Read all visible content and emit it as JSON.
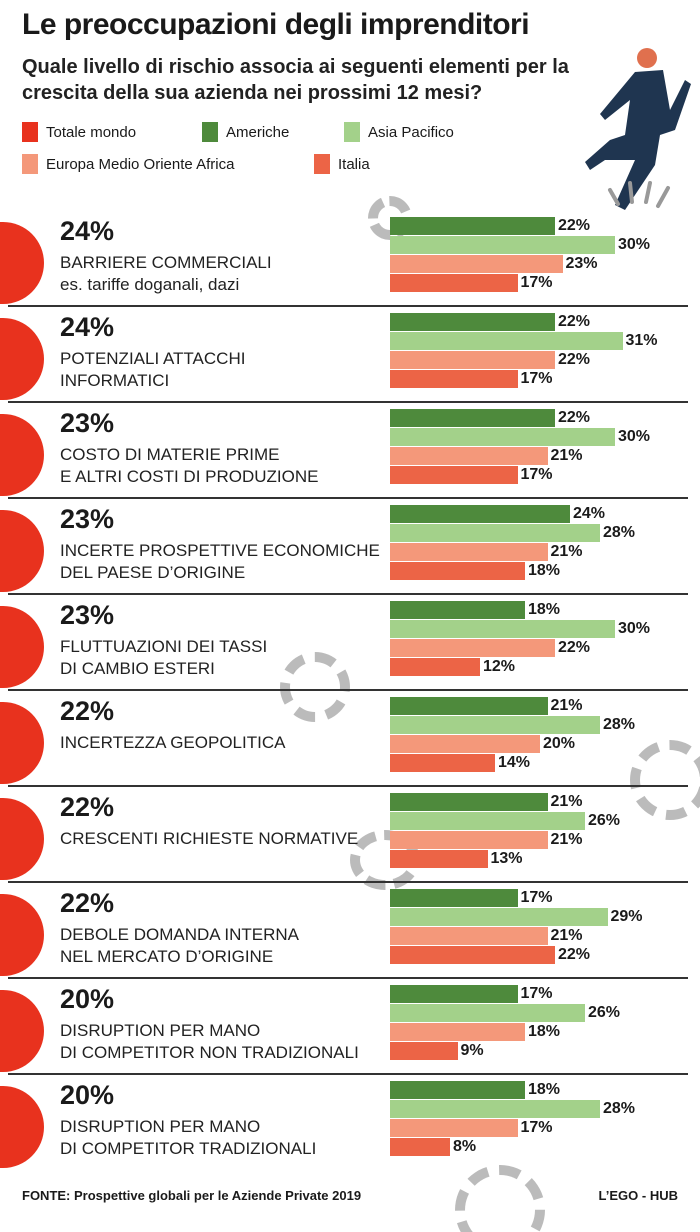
{
  "chart_data": {
    "type": "bar",
    "title": "Le preoccupazioni degli imprenditori",
    "subtitle": "Quale livello di rischio associa ai seguenti elementi per la crescita della sua azienda nei prossimi 12 mesi?",
    "legend": [
      {
        "name": "Totale mondo",
        "color": "#e8321e"
      },
      {
        "name": "Americhe",
        "color": "#4e8a3c"
      },
      {
        "name": "Asia Pacifico",
        "color": "#a3d18a"
      },
      {
        "name": "Europa Medio Oriente Africa",
        "color": "#f4987a"
      },
      {
        "name": "Italia",
        "color": "#ec6446"
      }
    ],
    "categories": [
      {
        "total": "24%",
        "label": [
          "BARRIERE COMMERCIALI",
          "es. tariffe doganali, dazi"
        ],
        "values": [
          22,
          30,
          23,
          17
        ]
      },
      {
        "total": "24%",
        "label": [
          "POTENZIALI ATTACCHI",
          "INFORMATICI"
        ],
        "values": [
          22,
          31,
          22,
          17
        ]
      },
      {
        "total": "23%",
        "label": [
          "COSTO DI MATERIE PRIME",
          "E ALTRI COSTI DI PRODUZIONE"
        ],
        "values": [
          22,
          30,
          21,
          17
        ]
      },
      {
        "total": "23%",
        "label": [
          "INCERTE PROSPETTIVE ECONOMICHE",
          "DEL PAESE D’ORIGINE"
        ],
        "values": [
          24,
          28,
          21,
          18
        ]
      },
      {
        "total": "23%",
        "label": [
          "FLUTTUAZIONI DEI TASSI",
          "DI CAMBIO ESTERI"
        ],
        "values": [
          18,
          30,
          22,
          12
        ]
      },
      {
        "total": "22%",
        "label": [
          "INCERTEZZA GEOPOLITICA"
        ],
        "values": [
          21,
          28,
          20,
          14
        ]
      },
      {
        "total": "22%",
        "label": [
          "CRESCENTI RICHIESTE NORMATIVE"
        ],
        "values": [
          21,
          26,
          21,
          13
        ]
      },
      {
        "total": "22%",
        "label": [
          "DEBOLE DOMANDA INTERNA",
          "NEL MERCATO D’ORIGINE"
        ],
        "values": [
          17,
          29,
          21,
          22
        ]
      },
      {
        "total": "20%",
        "label": [
          "DISRUPTION PER MANO",
          "DI COMPETITOR NON TRADIZIONALI"
        ],
        "values": [
          17,
          26,
          18,
          9
        ]
      },
      {
        "total": "20%",
        "label": [
          "DISRUPTION PER MANO",
          "DI COMPETITOR TRADIZIONALI"
        ],
        "values": [
          18,
          28,
          17,
          8
        ]
      }
    ],
    "series_order": [
      "Americhe",
      "Asia Pacifico",
      "Europa Medio Oriente Africa",
      "Italia"
    ],
    "unit": "%"
  },
  "footer": {
    "source": "FONTE: Prospettive globali per le Aziende Private 2019",
    "credit": "L’EGO - HUB"
  }
}
